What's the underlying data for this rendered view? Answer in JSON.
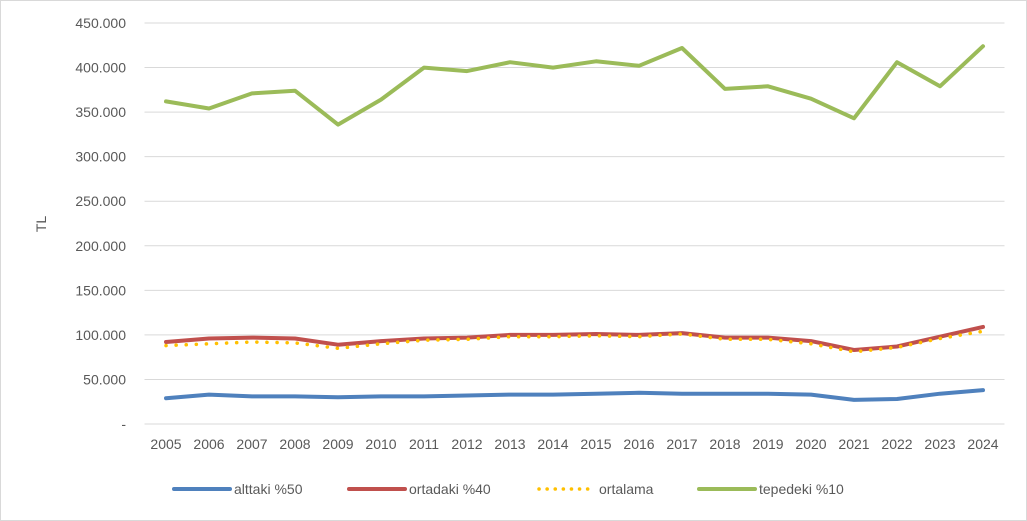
{
  "chart_data": {
    "type": "line",
    "title": "",
    "xlabel": "",
    "ylabel": "TL",
    "ylim": [
      0,
      450000
    ],
    "y_ticks": [
      0,
      50000,
      100000,
      150000,
      200000,
      250000,
      300000,
      350000,
      400000,
      450000
    ],
    "y_tick_labels": [
      "-",
      "50.000",
      "100.000",
      "150.000",
      "200.000",
      "250.000",
      "300.000",
      "350.000",
      "400.000",
      "450.000"
    ],
    "grid": true,
    "legend_position": "bottom",
    "categories": [
      "2005",
      "2006",
      "2007",
      "2008",
      "2009",
      "2010",
      "2011",
      "2012",
      "2013",
      "2014",
      "2015",
      "2016",
      "2017",
      "2018",
      "2019",
      "2020",
      "2021",
      "2022",
      "2023",
      "2024"
    ],
    "series": [
      {
        "name": "alttaki %50",
        "color": "#4f81bd",
        "style": "solid",
        "values": [
          29000,
          33000,
          31000,
          31000,
          30000,
          31000,
          31000,
          32000,
          33000,
          33000,
          34000,
          35000,
          34000,
          34000,
          34000,
          33000,
          27000,
          28000,
          34000,
          38000
        ]
      },
      {
        "name": "ortadaki %40",
        "color": "#c0504d",
        "style": "solid",
        "values": [
          92000,
          96000,
          97000,
          96000,
          89000,
          93000,
          96000,
          97000,
          100000,
          100000,
          101000,
          100000,
          102000,
          97000,
          97000,
          93000,
          83000,
          87000,
          98000,
          109000
        ]
      },
      {
        "name": "ortalama",
        "color": "#ffc000",
        "style": "dotted",
        "values": [
          88000,
          90000,
          92000,
          91000,
          85000,
          90000,
          94000,
          95000,
          98000,
          98000,
          99000,
          98000,
          101000,
          95000,
          95000,
          90000,
          81000,
          86000,
          96000,
          104000
        ]
      },
      {
        "name": "tepedeki %10",
        "color": "#9bbb59",
        "style": "solid",
        "values": [
          362000,
          354000,
          371000,
          374000,
          336000,
          364000,
          400000,
          396000,
          406000,
          400000,
          407000,
          402000,
          422000,
          376000,
          379000,
          365000,
          343000,
          406000,
          379000,
          424000
        ]
      }
    ]
  }
}
